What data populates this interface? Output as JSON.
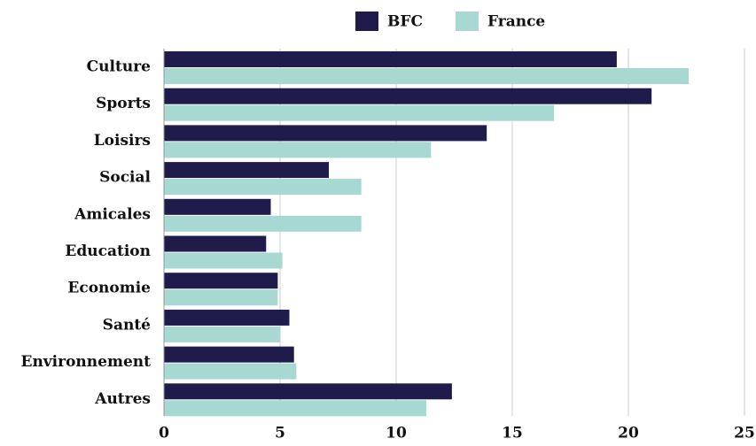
{
  "chart_data": {
    "type": "bar",
    "orientation": "horizontal",
    "categories": [
      "Culture",
      "Sports",
      "Loisirs",
      "Social",
      "Amicales",
      "Education",
      "Economie",
      "Santé",
      "Environnement",
      "Autres"
    ],
    "series": [
      {
        "name": "BFC",
        "color": "#1f1b4b",
        "values": [
          19.5,
          21.0,
          13.9,
          7.1,
          4.6,
          4.4,
          4.9,
          5.4,
          5.6,
          12.4
        ]
      },
      {
        "name": "France",
        "color": "#a8d8d2",
        "values": [
          22.6,
          16.8,
          11.5,
          8.5,
          8.5,
          5.1,
          4.9,
          5.0,
          5.7,
          11.3
        ]
      }
    ],
    "xlim": [
      0,
      25
    ],
    "xticks": [
      0,
      5,
      10,
      15,
      20,
      25
    ],
    "grid": true,
    "legend": "top"
  }
}
